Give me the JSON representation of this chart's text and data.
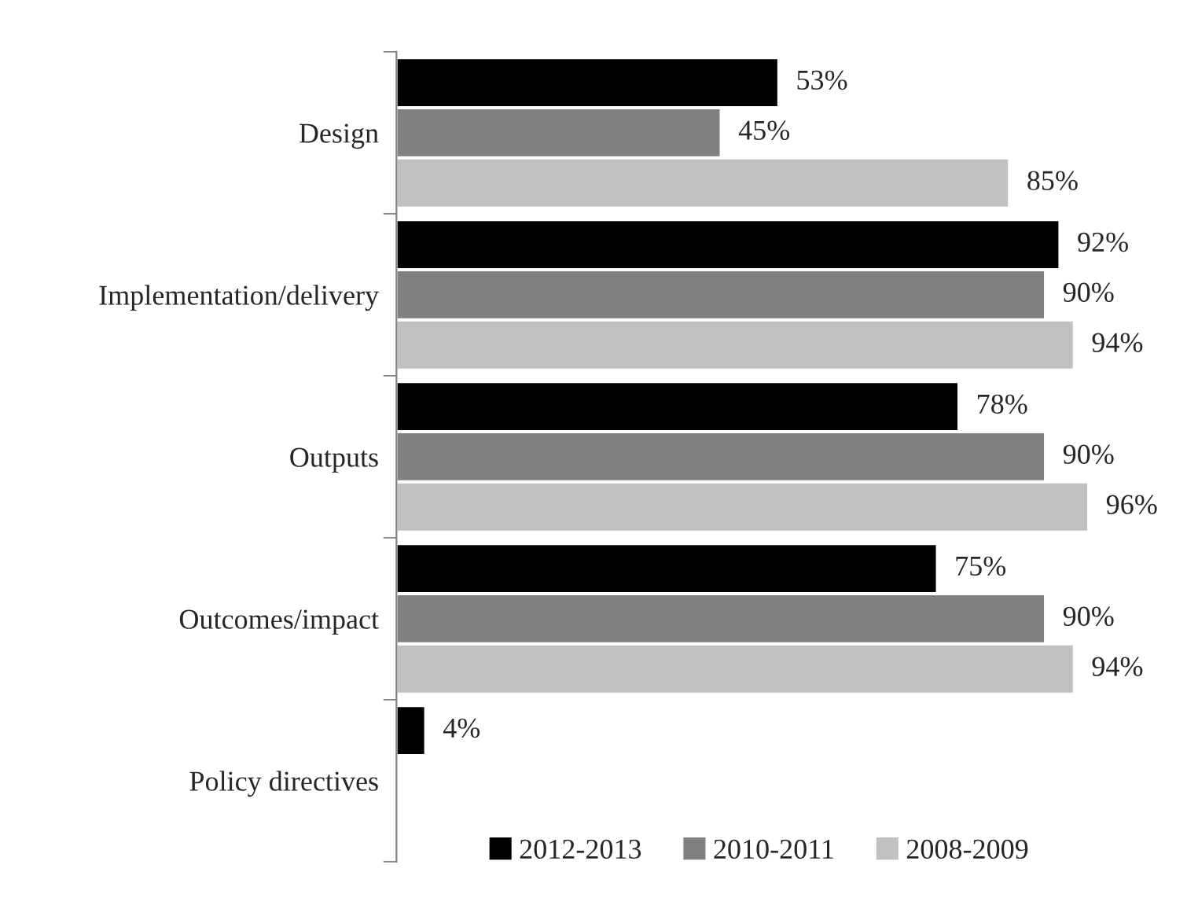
{
  "chart_data": {
    "type": "bar",
    "orientation": "horizontal",
    "categories": [
      "Design",
      "Implementation/delivery",
      "Outputs",
      "Outcomes/impact",
      "Policy directives"
    ],
    "series": [
      {
        "name": "2012-2013",
        "color": "#000000",
        "values": [
          53,
          92,
          78,
          75,
          4
        ],
        "value_labels": [
          "53%",
          "92%",
          "78%",
          "75%",
          "4%"
        ]
      },
      {
        "name": "2010-2011",
        "color": "#808080",
        "values": [
          45,
          90,
          90,
          90,
          null
        ],
        "value_labels": [
          "45%",
          "90%",
          "90%",
          "90%",
          null
        ]
      },
      {
        "name": "2008-2009",
        "color": "#c0c0c0",
        "values": [
          85,
          94,
          96,
          94,
          null
        ],
        "value_labels": [
          "85%",
          "94%",
          "96%",
          "94%",
          null
        ]
      }
    ],
    "tick_labels": "y",
    "grid": false,
    "legend": "bottom"
  }
}
